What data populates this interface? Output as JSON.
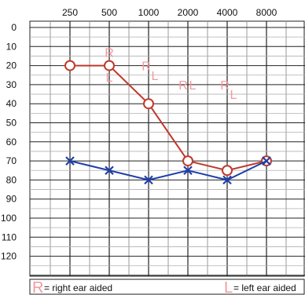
{
  "chart_data": {
    "type": "line",
    "x": [
      250,
      500,
      1000,
      2000,
      4000,
      8000
    ],
    "x_tick_labels": [
      "250",
      "500",
      "1000",
      "2000",
      "4000",
      "8000"
    ],
    "y_tick_labels": [
      "0",
      "10",
      "20",
      "30",
      "40",
      "50",
      "60",
      "70",
      "80",
      "90",
      "100",
      "110",
      "120"
    ],
    "ylim": [
      0,
      130
    ],
    "y_inverted": true,
    "grid": true,
    "series": [
      {
        "symbol": "O",
        "color": "#c0392b",
        "values": [
          20,
          20,
          40,
          70,
          75,
          70
        ]
      },
      {
        "symbol": "X",
        "color": "#1f3fa8",
        "values": [
          70,
          75,
          80,
          75,
          80,
          70
        ]
      }
    ],
    "aided_markers": [
      {
        "label": "R",
        "x": 500,
        "y": 13
      },
      {
        "label": "L",
        "x": 500,
        "y": 26
      },
      {
        "label": "R",
        "x": 1000,
        "y": 20
      },
      {
        "label": "L",
        "x": 1000,
        "y": 25
      },
      {
        "label": "R",
        "x": 2000,
        "y": 30
      },
      {
        "label": "L",
        "x": 2000,
        "y": 30
      },
      {
        "label": "R",
        "x": 4000,
        "y": 30
      },
      {
        "label": "L",
        "x": 4000,
        "y": 35
      }
    ],
    "legend": [
      {
        "letter": "R",
        "text": "= right ear aided"
      },
      {
        "letter": "L",
        "text": "= left ear aided"
      }
    ]
  }
}
